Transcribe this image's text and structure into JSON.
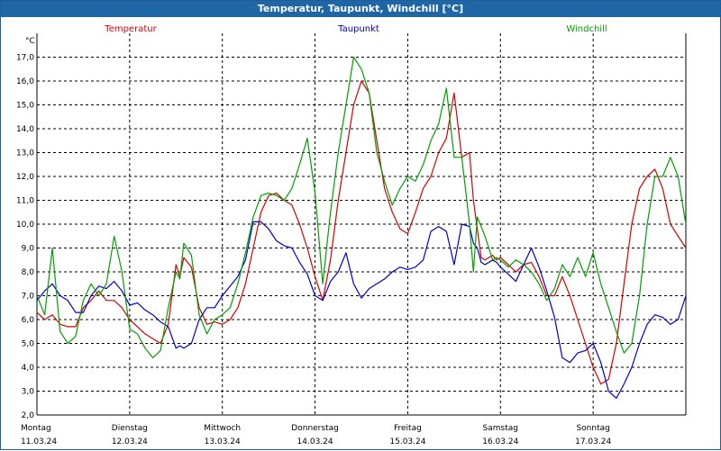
{
  "window_title": "Temperatur, Taupunkt, Windchill [°C]",
  "chart_data": {
    "type": "line",
    "title": "Temperatur, Taupunkt, Windchill [°C]",
    "ylabel": "°C",
    "xlabel": "",
    "ylim": [
      2.0,
      18.0
    ],
    "xlim": [
      0,
      168
    ],
    "y_ticks": [
      "2,0",
      "3,0",
      "4,0",
      "5,0",
      "6,0",
      "7,0",
      "8,0",
      "9,0",
      "10,0",
      "11,0",
      "12,0",
      "13,0",
      "14,0",
      "15,0",
      "16,0",
      "17,0"
    ],
    "grid": true,
    "day_ticks": [
      {
        "hour": 0,
        "day": "Montag",
        "date": "11.03.24"
      },
      {
        "hour": 24,
        "day": "Dienstag",
        "date": "12.03.24"
      },
      {
        "hour": 48,
        "day": "Mittwoch",
        "date": "13.03.24"
      },
      {
        "hour": 72,
        "day": "Donnerstag",
        "date": "14.03.24"
      },
      {
        "hour": 96,
        "day": "Freitag",
        "date": "15.03.24"
      },
      {
        "hour": 120,
        "day": "Samstag",
        "date": "16.03.24"
      },
      {
        "hour": 144,
        "day": "Sonntag",
        "date": "17.03.24"
      }
    ],
    "series": [
      {
        "name": "Temperatur",
        "color": "#d40000",
        "x": [
          0,
          2,
          4,
          6,
          8,
          10,
          12,
          14,
          16,
          18,
          20,
          22,
          24,
          26,
          28,
          30,
          32,
          34,
          36,
          37,
          38,
          40,
          42,
          44,
          46,
          48,
          50,
          52,
          54,
          56,
          58,
          60,
          62,
          64,
          66,
          68,
          70,
          72,
          74,
          76,
          78,
          80,
          82,
          84,
          86,
          88,
          90,
          92,
          94,
          96,
          98,
          100,
          102,
          104,
          106,
          108,
          110,
          112,
          113,
          114,
          115,
          116,
          118,
          119,
          120,
          122,
          124,
          126,
          128,
          130,
          132,
          134,
          136,
          138,
          140,
          142,
          144,
          146,
          148,
          150,
          152,
          154,
          156,
          158,
          160,
          162,
          164,
          166,
          168
        ],
        "y": [
          6.3,
          6.0,
          6.2,
          5.8,
          5.7,
          5.7,
          6.5,
          6.8,
          7.2,
          6.8,
          6.8,
          6.5,
          6.0,
          5.7,
          5.4,
          5.2,
          5.0,
          5.8,
          8.3,
          7.8,
          8.6,
          8.2,
          6.5,
          5.8,
          5.9,
          5.8,
          6.0,
          6.5,
          7.5,
          9.0,
          10.5,
          11.2,
          11.3,
          11.0,
          10.8,
          10.0,
          9.0,
          7.8,
          6.8,
          8.5,
          11.0,
          13.0,
          15.0,
          16.0,
          15.5,
          13.5,
          11.5,
          10.5,
          9.8,
          9.6,
          10.5,
          11.5,
          12.0,
          13.0,
          13.6,
          15.5,
          12.8,
          13.0,
          11.0,
          9.8,
          8.6,
          8.5,
          8.7,
          8.5,
          8.6,
          8.3,
          8.0,
          8.3,
          8.4,
          7.8,
          7.0,
          7.0,
          7.8,
          7.0,
          6.0,
          5.0,
          4.0,
          3.3,
          3.5,
          5.0,
          7.5,
          10.0,
          11.5,
          12.0,
          12.3,
          11.5,
          10.0,
          9.5,
          9.0
        ]
      },
      {
        "name": "Taupunkt",
        "color": "#0000c8",
        "x": [
          0,
          2,
          4,
          6,
          8,
          10,
          12,
          14,
          16,
          18,
          20,
          22,
          24,
          26,
          28,
          30,
          32,
          34,
          36,
          37,
          38,
          40,
          42,
          44,
          46,
          48,
          50,
          52,
          54,
          56,
          58,
          60,
          62,
          64,
          66,
          68,
          70,
          72,
          74,
          76,
          78,
          80,
          82,
          84,
          86,
          88,
          90,
          92,
          94,
          96,
          98,
          100,
          102,
          104,
          106,
          108,
          110,
          112,
          113,
          114,
          115,
          116,
          118,
          119,
          120,
          122,
          124,
          126,
          128,
          130,
          132,
          134,
          136,
          138,
          140,
          142,
          144,
          146,
          148,
          150,
          152,
          154,
          156,
          158,
          160,
          162,
          164,
          166,
          168
        ],
        "y": [
          6.8,
          7.2,
          7.5,
          7.0,
          6.8,
          6.3,
          6.3,
          7.0,
          7.4,
          7.3,
          7.6,
          7.2,
          6.6,
          6.7,
          6.4,
          6.2,
          5.9,
          5.7,
          4.8,
          4.9,
          4.8,
          5.0,
          6.0,
          6.5,
          6.5,
          7.0,
          7.4,
          7.8,
          8.5,
          10.1,
          10.1,
          9.8,
          9.3,
          9.1,
          9.0,
          8.4,
          7.9,
          7.0,
          6.8,
          7.6,
          8.0,
          8.8,
          7.5,
          6.9,
          7.3,
          7.5,
          7.7,
          8.0,
          8.2,
          8.1,
          8.2,
          8.5,
          9.7,
          9.9,
          9.7,
          8.3,
          10.0,
          9.9,
          9.2,
          9.0,
          8.4,
          8.3,
          8.5,
          8.4,
          8.2,
          7.9,
          7.6,
          8.3,
          9.0,
          8.2,
          7.2,
          6.1,
          4.4,
          4.2,
          4.6,
          4.7,
          5.0,
          4.2,
          3.0,
          2.7,
          3.3,
          4.0,
          5.0,
          5.8,
          6.2,
          6.1,
          5.8,
          6.0,
          7.0
        ]
      },
      {
        "name": "Windchill",
        "color": "#00a000",
        "x": [
          0,
          2,
          4,
          6,
          8,
          10,
          12,
          14,
          16,
          18,
          20,
          22,
          24,
          26,
          28,
          30,
          32,
          34,
          36,
          37,
          38,
          40,
          42,
          44,
          46,
          48,
          50,
          52,
          54,
          56,
          58,
          60,
          62,
          64,
          66,
          68,
          70,
          72,
          74,
          76,
          78,
          80,
          82,
          84,
          86,
          88,
          90,
          92,
          94,
          96,
          98,
          100,
          102,
          104,
          106,
          108,
          110,
          112,
          113,
          114,
          115,
          116,
          118,
          119,
          120,
          122,
          124,
          126,
          128,
          130,
          132,
          134,
          136,
          138,
          140,
          142,
          144,
          146,
          148,
          150,
          152,
          154,
          156,
          158,
          160,
          162,
          164,
          166,
          168
        ],
        "y": [
          7.0,
          6.2,
          9.0,
          5.5,
          5.0,
          5.3,
          6.8,
          7.5,
          7.0,
          7.5,
          9.5,
          8.0,
          5.6,
          5.4,
          4.8,
          4.4,
          4.7,
          6.5,
          8.0,
          7.7,
          9.2,
          8.7,
          6.2,
          5.4,
          6.0,
          6.2,
          6.5,
          7.5,
          8.8,
          10.3,
          11.2,
          11.3,
          11.2,
          11.0,
          11.5,
          12.5,
          13.6,
          11.3,
          7.5,
          10.5,
          13.0,
          15.0,
          17.0,
          16.5,
          15.5,
          13.0,
          11.8,
          10.8,
          11.5,
          12.0,
          11.8,
          12.5,
          13.5,
          14.2,
          15.7,
          12.8,
          12.8,
          10.0,
          8.0,
          10.3,
          9.9,
          9.5,
          8.5,
          8.6,
          8.5,
          8.2,
          8.5,
          8.3,
          8.0,
          7.5,
          6.8,
          7.3,
          8.3,
          7.8,
          8.6,
          7.8,
          8.8,
          7.5,
          6.5,
          5.5,
          4.6,
          5.0,
          7.0,
          10.0,
          12.0,
          12.0,
          12.8,
          12.0,
          10.0
        ]
      }
    ]
  }
}
